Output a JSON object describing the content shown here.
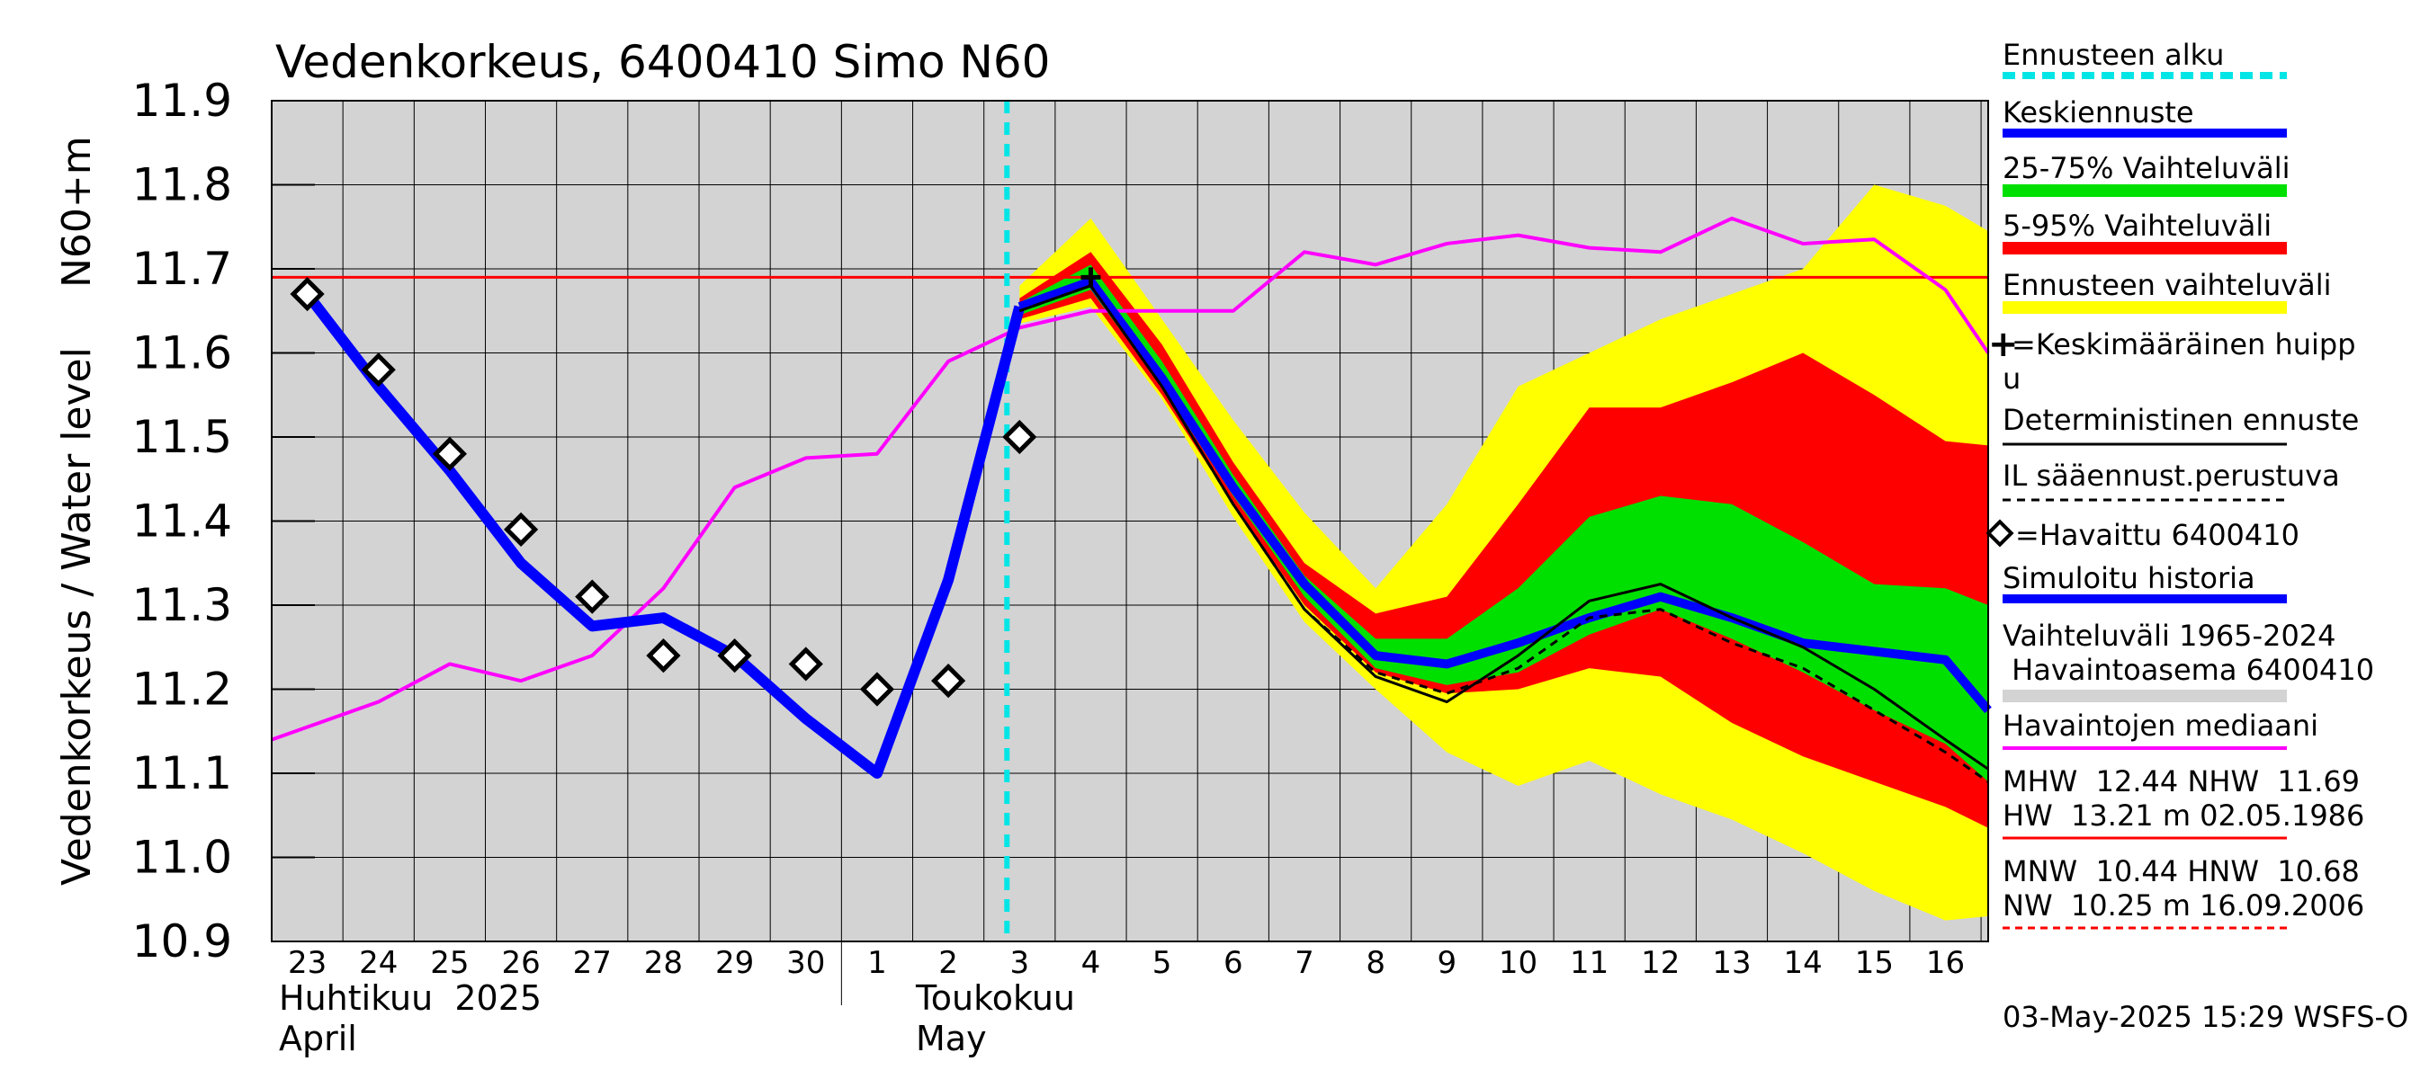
{
  "chart_data": {
    "type": "line",
    "title": "Vedenkorkeus, 6400410 Simo N60",
    "ylabel_top": "N60+m",
    "ylabel_bottom": "Vedenkorkeus / Water level",
    "ylim": [
      10.9,
      11.9
    ],
    "yticks": [
      "11.9",
      "11.8",
      "11.7",
      "11.6",
      "11.5",
      "11.4",
      "11.3",
      "11.2",
      "11.1",
      "11.0",
      "10.9"
    ],
    "xlim_days": [
      -0.5,
      23.6
    ],
    "xdays": [
      "23",
      "24",
      "25",
      "26",
      "27",
      "28",
      "29",
      "30",
      "1",
      "2",
      "3",
      "4",
      "5",
      "6",
      "7",
      "8",
      "9",
      "10",
      "11",
      "12",
      "13",
      "14",
      "15",
      "16"
    ],
    "month_labels": [
      {
        "fi": "Huhtikuu  2025",
        "en": "April"
      },
      {
        "fi": "Toukokuu",
        "en": "May"
      }
    ],
    "forecast_start_day": 10,
    "mhw_line": 11.69,
    "grid": true,
    "legend_position": "right",
    "legend": [
      "Ennusteen alku",
      "Keskiennuste",
      "25-75% Vaihteluväli",
      "5-95% Vaihteluväli",
      "Ennusteen vaihteluväli",
      "=Keskimääräinen huipp",
      "u",
      "Deterministinen ennuste",
      "IL sääennust.perustuva",
      "=Havaittu 6400410",
      "Simuloitu historia",
      "Vaihteluväli 1965-2024",
      " Havaintoasema 6400410",
      "Havaintojen mediaani",
      "MHW  12.44 NHW  11.69",
      "HW  13.21 m 02.05.1986",
      "MNW  10.44 HNW  10.68",
      "NW  10.25 m 16.09.2006"
    ],
    "footer": "03-May-2025 15:29 WSFS-O",
    "colors": {
      "forecast_start": "#00e5e5",
      "mean_forecast": "#0000ff",
      "band_25_75": "#00e000",
      "band_5_95": "#ff0000",
      "band_ensemble": "#ffff00",
      "deterministic": "#000000",
      "history_range": "#d3d3d3",
      "median": "#ff00ff",
      "mhw": "#ff0000"
    },
    "series": [
      {
        "name": "Simuloitu historia",
        "x": [
          0,
          1,
          2,
          3,
          4,
          5,
          6,
          7,
          8,
          9,
          10
        ],
        "y": [
          11.67,
          11.56,
          11.46,
          11.35,
          11.275,
          11.285,
          11.24,
          11.165,
          11.1,
          11.33,
          11.655
        ]
      },
      {
        "name": "Keskiennuste",
        "x": [
          10,
          11,
          12,
          13,
          14,
          15,
          16,
          17,
          18,
          19,
          20,
          21,
          22,
          23,
          23.6
        ],
        "y": [
          11.655,
          11.685,
          11.57,
          11.44,
          11.325,
          11.24,
          11.23,
          11.255,
          11.285,
          11.31,
          11.285,
          11.255,
          11.245,
          11.235,
          11.175
        ]
      },
      {
        "name": "Deterministinen ennuste",
        "x": [
          10,
          11,
          12,
          13,
          14,
          15,
          16,
          17,
          18,
          19,
          20,
          21,
          22,
          23,
          23.6
        ],
        "y": [
          11.65,
          11.68,
          11.56,
          11.42,
          11.295,
          11.215,
          11.185,
          11.24,
          11.305,
          11.325,
          11.285,
          11.25,
          11.2,
          11.14,
          11.105
        ]
      },
      {
        "name": "IL sääennust.perustuva",
        "x": [
          10,
          11,
          12,
          13,
          14,
          15,
          16,
          17,
          18,
          19,
          20,
          21,
          22,
          23,
          23.6
        ],
        "y": [
          11.65,
          11.68,
          11.56,
          11.42,
          11.295,
          11.22,
          11.195,
          11.225,
          11.285,
          11.295,
          11.255,
          11.225,
          11.175,
          11.125,
          11.09
        ]
      },
      {
        "name": "Havaintojen mediaani",
        "x": [
          -0.5,
          1,
          2,
          3,
          4,
          5,
          6,
          7,
          8,
          9,
          10,
          11,
          12,
          13,
          14,
          15,
          16,
          17,
          18,
          19,
          20,
          21,
          22,
          23,
          23.6
        ],
        "y": [
          11.14,
          11.185,
          11.23,
          11.21,
          11.24,
          11.32,
          11.44,
          11.475,
          11.48,
          11.59,
          11.63,
          11.65,
          11.65,
          11.65,
          11.72,
          11.705,
          11.73,
          11.74,
          11.725,
          11.72,
          11.76,
          11.73,
          11.735,
          11.675,
          11.6
        ]
      },
      {
        "name": "=Havaittu 6400410",
        "x": [
          0,
          1,
          2,
          3,
          4,
          5,
          6,
          7,
          8,
          9,
          10
        ],
        "y": [
          11.67,
          11.58,
          11.48,
          11.39,
          11.31,
          11.24,
          11.24,
          11.23,
          11.2,
          11.21,
          11.5
        ]
      },
      {
        "name": "=Keskimääräinen huippu",
        "x": [
          11
        ],
        "y": [
          11.69
        ]
      }
    ],
    "bands": [
      {
        "name": "Ennusteen vaihteluväli",
        "x": [
          10,
          11,
          12,
          13,
          14,
          15,
          16,
          17,
          18,
          19,
          20,
          21,
          22,
          23,
          23.6
        ],
        "upper": [
          11.68,
          11.76,
          11.64,
          11.52,
          11.41,
          11.32,
          11.42,
          11.56,
          11.6,
          11.64,
          11.67,
          11.7,
          11.8,
          11.775,
          11.745
        ],
        "lower": [
          11.635,
          11.655,
          11.545,
          11.405,
          11.28,
          11.2,
          11.125,
          11.085,
          11.115,
          11.075,
          11.045,
          11.005,
          10.96,
          10.925,
          10.93
        ]
      },
      {
        "name": "5-95% Vaihteluväli",
        "x": [
          10,
          11,
          12,
          13,
          14,
          15,
          16,
          17,
          18,
          19,
          20,
          21,
          22,
          23,
          23.6
        ],
        "upper": [
          11.665,
          11.72,
          11.61,
          11.47,
          11.35,
          11.29,
          11.31,
          11.42,
          11.535,
          11.535,
          11.565,
          11.6,
          11.55,
          11.495,
          11.49
        ],
        "lower": [
          11.64,
          11.665,
          11.55,
          11.42,
          11.3,
          11.22,
          11.195,
          11.2,
          11.225,
          11.215,
          11.16,
          11.12,
          11.09,
          11.06,
          11.035
        ]
      },
      {
        "name": "25-75% Vaihteluväli",
        "x": [
          10,
          11,
          12,
          13,
          14,
          15,
          16,
          17,
          18,
          19,
          20,
          21,
          22,
          23,
          23.6
        ],
        "upper": [
          11.66,
          11.705,
          11.59,
          11.455,
          11.335,
          11.26,
          11.26,
          11.32,
          11.405,
          11.43,
          11.42,
          11.375,
          11.325,
          11.32,
          11.3
        ],
        "lower": [
          11.645,
          11.675,
          11.56,
          11.43,
          11.31,
          11.225,
          11.205,
          11.22,
          11.265,
          11.295,
          11.26,
          11.22,
          11.175,
          11.135,
          11.09
        ]
      }
    ]
  }
}
